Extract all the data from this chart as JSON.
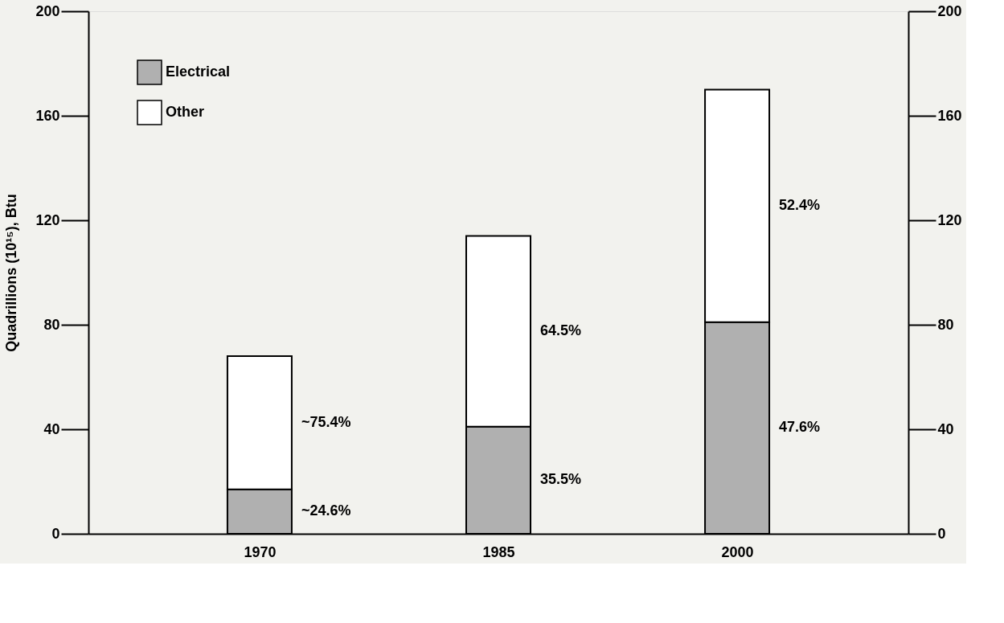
{
  "chart_data": {
    "type": "bar",
    "stacked": true,
    "categories": [
      "1970",
      "1985",
      "2000"
    ],
    "series": [
      {
        "name": "Electrical",
        "color": "#b0b0b0",
        "values": [
          17,
          41,
          81
        ]
      },
      {
        "name": "Other",
        "color": "#ffffff",
        "values": [
          51,
          73,
          89
        ]
      }
    ],
    "annotations": [
      "~24.6%",
      "~75.4%",
      "35.5%",
      "64.5%",
      "47.6%",
      "52.4%"
    ],
    "ylabel": "Quadrillions (10¹⁵), Btu",
    "ylim": [
      0,
      200
    ],
    "yticks": [
      0,
      40,
      80,
      120,
      160,
      200
    ],
    "y2lim": [
      0,
      200
    ],
    "y2ticks": [
      0,
      40,
      80,
      120,
      160,
      200
    ],
    "grid": false,
    "legend": "top left"
  }
}
